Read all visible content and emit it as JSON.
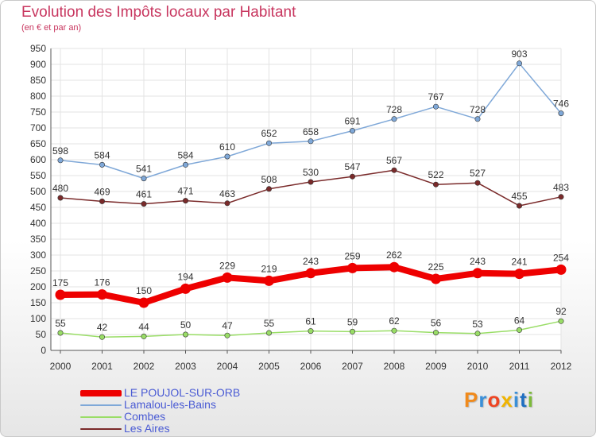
{
  "header": {
    "title": "Evolution des Impôts locaux par Habitant",
    "subtitle": "(en € et par an)"
  },
  "logo": {
    "letters": [
      "P",
      "r",
      "o",
      "x",
      "i",
      "t",
      "i"
    ],
    "colors": [
      "#f08a1c",
      "#3a8fd8",
      "#ee4422",
      "#f0b400",
      "#3a8fd8",
      "#1f6fc2",
      "#7cba3a"
    ]
  },
  "chart_data": {
    "type": "line",
    "title": "Evolution des Impôts locaux par Habitant",
    "subtitle": "(en € et par an)",
    "x": [
      "2000",
      "2001",
      "2002",
      "2003",
      "2004",
      "2005",
      "2006",
      "2007",
      "2008",
      "2009",
      "2010",
      "2011",
      "2012"
    ],
    "ylim": [
      0,
      950
    ],
    "yticks": [
      0,
      50,
      100,
      150,
      200,
      250,
      300,
      350,
      400,
      450,
      500,
      550,
      600,
      650,
      700,
      750,
      800,
      850,
      900,
      950
    ],
    "grid": true,
    "legend_position": "bottom-left",
    "series": [
      {
        "name": "LE POUJOL-SUR-ORB",
        "color": "#ee0000",
        "values": [
          175,
          176,
          150,
          194,
          229,
          219,
          243,
          259,
          262,
          225,
          243,
          241,
          254
        ]
      },
      {
        "name": "Lamalou-les-Bains",
        "color": "#7fa8d8",
        "values": [
          598,
          584,
          541,
          584,
          610,
          652,
          658,
          691,
          728,
          767,
          728,
          903,
          746
        ]
      },
      {
        "name": "Combes",
        "color": "#99dd66",
        "values": [
          55,
          42,
          44,
          50,
          47,
          55,
          61,
          59,
          62,
          56,
          53,
          64,
          92
        ]
      },
      {
        "name": "Les Aires",
        "color": "#7a2a2a",
        "values": [
          480,
          469,
          461,
          471,
          463,
          508,
          530,
          547,
          567,
          522,
          527,
          455,
          483
        ]
      }
    ]
  }
}
